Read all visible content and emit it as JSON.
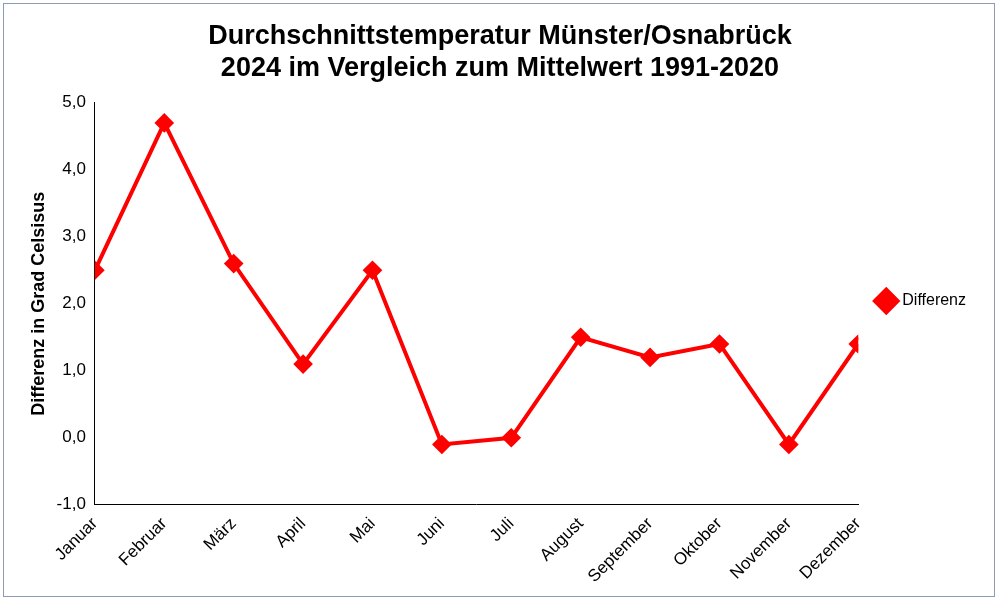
{
  "chart_data": {
    "type": "line",
    "title": [
      "Durchschnittstemperatur Münster/Osnabrück",
      "2024 im Vergleich zum Mittelwert 1991-2020"
    ],
    "y_label": "Differenz in Grad Celsisus",
    "categories": [
      "Januar",
      "Februar",
      "März",
      "April",
      "Mai",
      "Juni",
      "Juli",
      "August",
      "September",
      "Oktober",
      "November",
      "Dezember"
    ],
    "series": [
      {
        "name": "Differenz",
        "color": "#ff0000",
        "marker": "diamond",
        "line_style": "solid",
        "values": [
          2.5,
          4.7,
          2.6,
          1.1,
          2.5,
          -0.1,
          0.0,
          1.5,
          1.2,
          1.4,
          -0.1,
          1.4
        ]
      }
    ],
    "ylim": [
      -1,
      5
    ],
    "yticks": [
      {
        "value": -1,
        "label": "-1,0"
      },
      {
        "value": 0,
        "label": "0,0"
      },
      {
        "value": 1,
        "label": "1,0"
      },
      {
        "value": 2,
        "label": "2,0"
      },
      {
        "value": 3,
        "label": "3,0"
      },
      {
        "value": 4,
        "label": "4,0"
      },
      {
        "value": 5,
        "label": "5,0"
      }
    ],
    "grid": false,
    "legend": "right"
  }
}
